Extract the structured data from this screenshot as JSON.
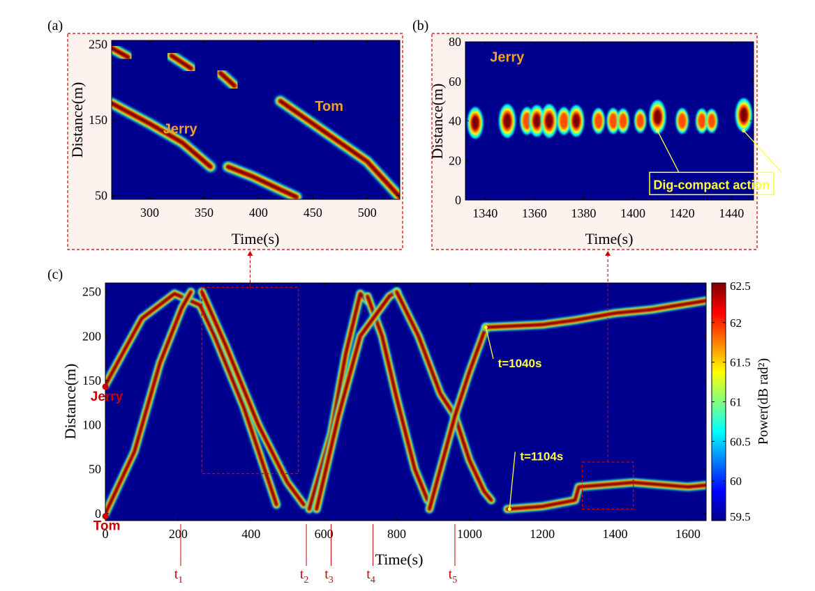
{
  "colors": {
    "background_blue": "#00008f",
    "track_red": "#800000",
    "annotation_red": "#cc0000",
    "label_orange": "#f0a030",
    "annotation_yellow": "#ffff40",
    "inset_bg": "#fdf2ee"
  },
  "colorbar": {
    "label": "Power(dB rad²)",
    "ticks": [
      "62.5",
      "62",
      "61.5",
      "61",
      "60.5",
      "60",
      "59.5"
    ],
    "min": 59.5,
    "max": 62.5,
    "colormap": "jet"
  },
  "chart_data": [
    {
      "id": "panel_a",
      "panel_label": "(a)",
      "type": "heatmap",
      "xlabel": "Time(s)",
      "ylabel": "Distance(m)",
      "xlim": [
        265,
        530
      ],
      "ylim": [
        45,
        255
      ],
      "xticks": [
        300,
        350,
        400,
        450,
        500
      ],
      "yticks": [
        50,
        150,
        250
      ],
      "annotations": [
        {
          "text": "Jerry",
          "x": 328,
          "y": 132
        },
        {
          "text": "Tom",
          "x": 465,
          "y": 162
        }
      ],
      "tracks": [
        {
          "name": "Jerry",
          "points": [
            [
              265,
              172
            ],
            [
              300,
              145
            ],
            [
              330,
              120
            ],
            [
              356,
              88
            ]
          ]
        },
        {
          "name": "Jerry",
          "points": [
            [
              372,
              88
            ],
            [
              395,
              75
            ],
            [
              420,
              58
            ],
            [
              435,
              48
            ]
          ]
        },
        {
          "name": "Tom",
          "points": [
            [
              420,
              175
            ],
            [
              450,
              145
            ],
            [
              475,
              120
            ],
            [
              500,
              95
            ],
            [
              530,
              48
            ]
          ]
        },
        {
          "name": "Tom",
          "points": [
            [
              265,
              245
            ],
            [
              280,
              233
            ]
          ]
        },
        {
          "name": "Tom",
          "points": [
            [
              320,
              235
            ],
            [
              338,
              218
            ]
          ]
        },
        {
          "name": "Tom",
          "points": [
            [
              365,
              212
            ],
            [
              378,
              195
            ]
          ]
        }
      ]
    },
    {
      "id": "panel_b",
      "panel_label": "(b)",
      "type": "heatmap",
      "xlabel": "Time(s)",
      "ylabel": "Distance(m)",
      "xlim": [
        1332,
        1449
      ],
      "ylim": [
        0,
        80
      ],
      "xticks": [
        1340,
        1360,
        1380,
        1400,
        1420,
        1440
      ],
      "yticks": [
        0,
        20,
        40,
        60,
        80
      ],
      "annotations": [
        {
          "text": "Jerry",
          "x": 1342,
          "y": 70
        },
        {
          "text": "Dig-compact action",
          "x": 1430,
          "y": 8
        }
      ],
      "blobs": [
        {
          "x": 1336,
          "y": 39,
          "intensity": 0.9
        },
        {
          "x": 1349,
          "y": 40,
          "intensity": 1.0
        },
        {
          "x": 1357,
          "y": 40,
          "intensity": 0.7
        },
        {
          "x": 1361,
          "y": 40,
          "intensity": 0.9
        },
        {
          "x": 1366,
          "y": 40,
          "intensity": 1.0
        },
        {
          "x": 1372,
          "y": 40,
          "intensity": 0.7
        },
        {
          "x": 1377,
          "y": 40,
          "intensity": 0.9
        },
        {
          "x": 1386,
          "y": 40,
          "intensity": 0.6
        },
        {
          "x": 1392,
          "y": 40,
          "intensity": 0.6
        },
        {
          "x": 1396,
          "y": 40,
          "intensity": 0.55
        },
        {
          "x": 1403,
          "y": 40,
          "intensity": 0.5
        },
        {
          "x": 1410,
          "y": 42,
          "intensity": 1.0
        },
        {
          "x": 1420,
          "y": 40,
          "intensity": 0.6
        },
        {
          "x": 1428,
          "y": 40,
          "intensity": 0.55
        },
        {
          "x": 1432,
          "y": 40,
          "intensity": 0.5
        },
        {
          "x": 1445,
          "y": 43,
          "intensity": 1.0
        }
      ]
    },
    {
      "id": "panel_c",
      "panel_label": "(c)",
      "type": "heatmap",
      "xlabel": "Time(s)",
      "ylabel": "Distance(m)",
      "xlim": [
        0,
        1650
      ],
      "ylim": [
        -8,
        260
      ],
      "xticks": [
        0,
        200,
        400,
        600,
        800,
        1000,
        1200,
        1400,
        1600
      ],
      "yticks": [
        0,
        50,
        100,
        150,
        200,
        250
      ],
      "markers": [
        {
          "text": "Jerry",
          "x": 0,
          "y": 143
        },
        {
          "text": "Tom",
          "x": 0,
          "y": -3
        }
      ],
      "time_marks": [
        {
          "label": "t",
          "sub": "1",
          "x": 207
        },
        {
          "label": "t",
          "sub": "2",
          "x": 552
        },
        {
          "label": "t",
          "sub": "3",
          "x": 620
        },
        {
          "label": "t",
          "sub": "4",
          "x": 735
        },
        {
          "label": "t",
          "sub": "5",
          "x": 960
        }
      ],
      "annotations": [
        {
          "text": "t=1040s",
          "x": 1100,
          "y": 165,
          "arrow_to": [
            1045,
            210
          ]
        },
        {
          "text": "t=1104s",
          "x": 1160,
          "y": 60,
          "arrow_to": [
            1110,
            5
          ]
        }
      ],
      "tracks": [
        {
          "name": "Jerry",
          "points": [
            [
              0,
              145
            ],
            [
              100,
              220
            ],
            [
              190,
              248
            ],
            [
              260,
              235
            ],
            [
              300,
              200
            ],
            [
              380,
              120
            ],
            [
              470,
              10
            ]
          ]
        },
        {
          "name": "Tom",
          "points": [
            [
              0,
              0
            ],
            [
              80,
              70
            ],
            [
              150,
              170
            ],
            [
              210,
              232
            ],
            [
              235,
              250
            ]
          ]
        },
        {
          "name": "Tom",
          "points": [
            [
              265,
              250
            ],
            [
              330,
              190
            ],
            [
              420,
              100
            ],
            [
              500,
              35
            ],
            [
              545,
              10
            ]
          ]
        },
        {
          "name": "Jerry",
          "points": [
            [
              560,
              5
            ],
            [
              620,
              90
            ],
            [
              660,
              180
            ],
            [
              700,
              248
            ],
            [
              720,
              240
            ]
          ]
        },
        {
          "name": "Jerry",
          "points": [
            [
              720,
              245
            ],
            [
              760,
              200
            ],
            [
              800,
              130
            ],
            [
              850,
              50
            ],
            [
              885,
              15
            ]
          ]
        },
        {
          "name": "Tom",
          "points": [
            [
              580,
              5
            ],
            [
              640,
              110
            ],
            [
              700,
              200
            ],
            [
              780,
              245
            ],
            [
              800,
              250
            ]
          ]
        },
        {
          "name": "Tom",
          "points": [
            [
              800,
              250
            ],
            [
              860,
              200
            ],
            [
              920,
              135
            ],
            [
              960,
              110
            ],
            [
              1000,
              60
            ],
            [
              1040,
              25
            ],
            [
              1060,
              15
            ]
          ]
        },
        {
          "name": "Jerry",
          "points": [
            [
              890,
              5
            ],
            [
              940,
              80
            ],
            [
              960,
              110
            ],
            [
              1000,
              160
            ],
            [
              1045,
              210
            ]
          ]
        },
        {
          "name": "Jerry",
          "points": [
            [
              1045,
              210
            ],
            [
              1200,
              213
            ],
            [
              1290,
              218
            ],
            [
              1400,
              226
            ],
            [
              1500,
              230
            ],
            [
              1650,
              240
            ]
          ]
        },
        {
          "name": "Tom",
          "points": [
            [
              1104,
              5
            ],
            [
              1200,
              8
            ],
            [
              1290,
              15
            ],
            [
              1300,
              30
            ],
            [
              1450,
              35
            ],
            [
              1600,
              30
            ],
            [
              1650,
              32
            ]
          ]
        }
      ],
      "zoom_boxes": [
        {
          "target": "panel_a",
          "x": [
            265,
            530
          ],
          "y": [
            45,
            255
          ]
        },
        {
          "target": "panel_b",
          "x": [
            1310,
            1450
          ],
          "y": [
            5,
            58
          ]
        }
      ]
    }
  ]
}
